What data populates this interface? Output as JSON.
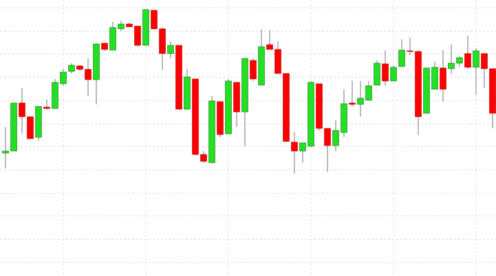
{
  "chart_data": {
    "type": "candlestick",
    "categories": [
      null,
      null,
      null,
      null,
      null,
      null,
      null,
      null,
      null,
      null,
      null,
      null,
      null,
      null,
      null,
      null,
      null,
      null,
      null,
      null,
      null,
      null,
      null,
      null,
      null,
      null,
      null,
      null,
      null,
      null,
      null,
      null,
      null,
      null,
      null,
      null,
      null,
      null,
      null,
      null,
      null,
      null,
      null,
      null,
      null,
      null,
      null,
      null,
      null,
      null,
      null,
      null,
      null,
      null,
      null,
      null,
      null,
      null,
      null,
      null
    ],
    "open": [
      179,
      182,
      252,
      232,
      202,
      246,
      244,
      280,
      298,
      306,
      301,
      286,
      339,
      329,
      360,
      367,
      364,
      336,
      387,
      360,
      324,
      336,
      243,
      287,
      177,
      165,
      254,
      207,
      282,
      239,
      314,
      278,
      337,
      330,
      295,
      195,
      182,
      189,
      280,
      215,
      190,
      209,
      252,
      250,
      256,
      278,
      309,
      284,
      305,
      328,
      327,
      237,
      272,
      303,
      302,
      310,
      324,
      304,
      324,
      302
    ],
    "high": [
      217,
      252,
      274,
      232,
      247,
      257,
      287,
      302,
      310,
      307,
      317,
      338,
      340,
      370,
      372,
      369,
      364,
      388,
      387,
      362,
      342,
      336,
      302,
      287,
      182,
      262,
      254,
      287,
      282,
      317,
      317,
      359,
      358,
      342,
      295,
      210,
      194,
      284,
      280,
      215,
      227,
      272,
      284,
      284,
      284,
      314,
      329,
      307,
      345,
      347,
      329,
      303,
      312,
      329,
      337,
      320,
      350,
      332,
      324,
      302
    ],
    "low": [
      157,
      182,
      207,
      200,
      197,
      242,
      244,
      277,
      295,
      299,
      262,
      250,
      328,
      329,
      357,
      362,
      334,
      336,
      359,
      300,
      317,
      242,
      242,
      176,
      165,
      164,
      202,
      207,
      217,
      189,
      284,
      278,
      330,
      295,
      196,
      149,
      165,
      188,
      212,
      152,
      182,
      202,
      247,
      232,
      256,
      278,
      277,
      284,
      305,
      322,
      205,
      237,
      272,
      254,
      294,
      305,
      302,
      264,
      274,
      215
    ],
    "close": [
      182,
      252,
      232,
      200,
      247,
      244,
      282,
      297,
      307,
      301,
      286,
      338,
      330,
      362,
      367,
      363,
      336,
      388,
      360,
      324,
      336,
      243,
      290,
      177,
      167,
      255,
      206,
      284,
      239,
      317,
      287,
      334,
      330,
      295,
      196,
      182,
      194,
      282,
      215,
      190,
      212,
      251,
      250,
      259,
      277,
      310,
      284,
      304,
      329,
      327,
      232,
      303,
      304,
      272,
      310,
      318,
      304,
      328,
      302,
      237
    ],
    "up_color": "#22e022",
    "down_color": "#ff0000",
    "ylim": [
      0,
      402
    ],
    "yticks": [
      20,
      54,
      88,
      121,
      155,
      189,
      222,
      256,
      290,
      324,
      357,
      391
    ],
    "grid": true
  }
}
